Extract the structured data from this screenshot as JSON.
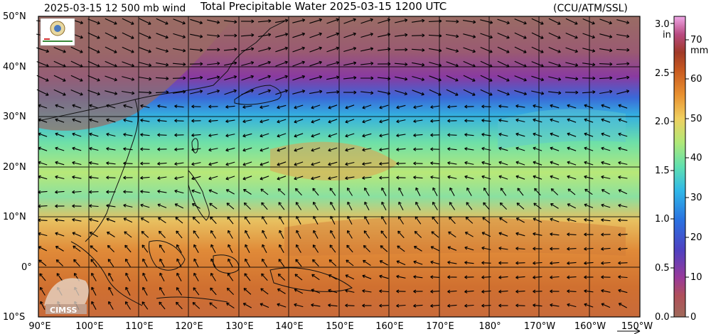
{
  "header": {
    "left_label": "2025-03-15 12 500 mb wind",
    "title": "Total Precipitable Water  2025-03-15 1200 UTC",
    "credit": "(CCU/ATM/SSL)"
  },
  "logos": {
    "top_left": "SSEC / CIMSS lab logo",
    "bottom_left": "CIMSS"
  },
  "latitude_labels": [
    "50°N",
    "40°N",
    "30°N",
    "20°N",
    "10°N",
    "0°",
    "10°S"
  ],
  "longitude_labels": [
    "90°E",
    "100°E",
    "110°E",
    "120°E",
    "130°E",
    "140°E",
    "150°E",
    "160°E",
    "170°E",
    "180°",
    "170°W",
    "160°W",
    "150°W"
  ],
  "colorbar": {
    "inch_unit": "in",
    "mm_unit": "mm",
    "inch_ticks": [
      "3.0",
      "2.5",
      "2.0",
      "1.5",
      "1.0",
      "0.5",
      "0.0"
    ],
    "mm_ticks": [
      "70",
      "60",
      "50",
      "40",
      "30",
      "20",
      "10",
      "0"
    ],
    "colors": [
      "#8a6458",
      "#9a5a6a",
      "#a23a8a",
      "#6a3ab8",
      "#3a6ad8",
      "#2aa0e8",
      "#46d0c0",
      "#7ee88a",
      "#c8e070",
      "#f0c060",
      "#e89030",
      "#c86020",
      "#a03a20",
      "#b83a6a",
      "#e89ad8"
    ]
  },
  "legend_icons": {
    "wind_arrow": "wind-vector-arrow-icon"
  }
}
